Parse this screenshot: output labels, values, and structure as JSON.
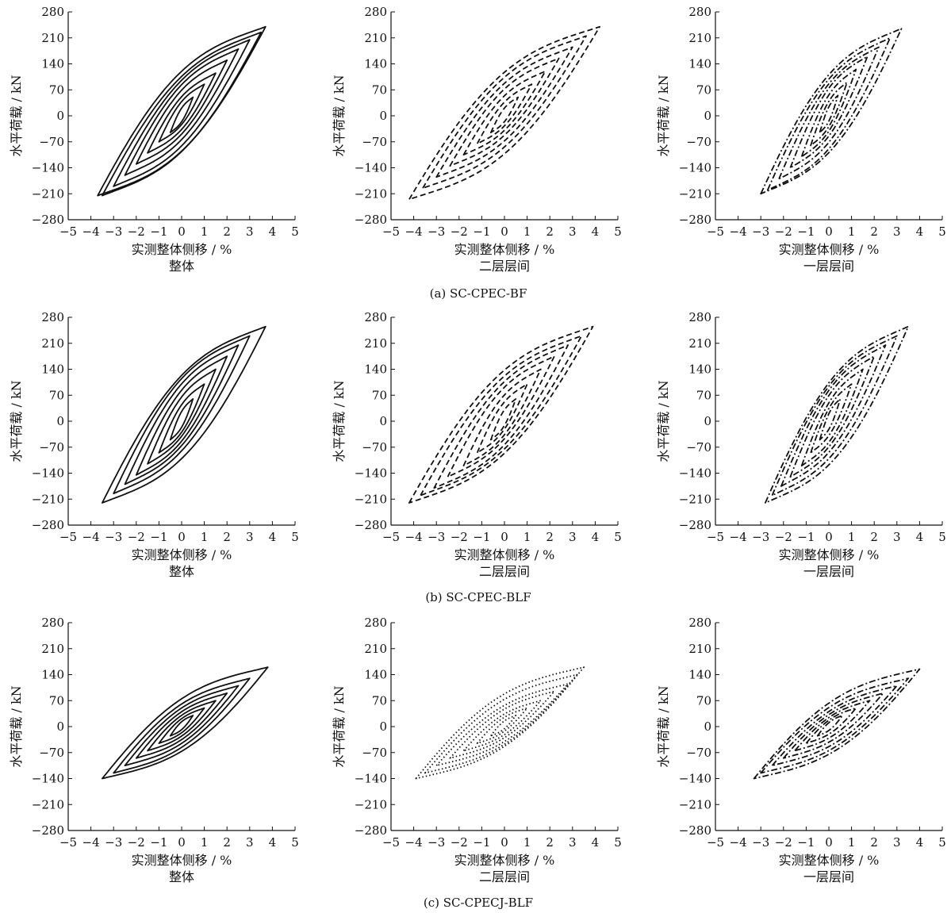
{
  "figure": {
    "row_captions": [
      "(a) SC-CPEC-BF",
      "(b) SC-CPEC-BLF",
      "(c) SC-CPECJ-BLF"
    ]
  },
  "chart_data": [
    {
      "type": "line",
      "row": 0,
      "col": 0,
      "xlabel": "实测整体侧移 / %",
      "ylabel": "水平荷载 / kN",
      "panel_label": "整体",
      "xlim": [
        -5,
        5
      ],
      "ylim": [
        -280,
        280
      ],
      "xticks": [
        "−5",
        "−4",
        "−3",
        "−2",
        "−1",
        "0",
        "1",
        "2",
        "3",
        "4",
        "5"
      ],
      "yticks": [
        "280",
        "210",
        "140",
        "70",
        "0",
        "−70",
        "−140",
        "−210",
        "−280"
      ],
      "line_style": "solid",
      "stroke": "#111111",
      "series": [
        {
          "x_min": -0.5,
          "y_min": -45,
          "x_max": 0.5,
          "y_max": 50
        },
        {
          "x_min": -1.0,
          "y_min": -70,
          "x_max": 1.0,
          "y_max": 85
        },
        {
          "x_min": -1.5,
          "y_min": -100,
          "x_max": 1.5,
          "y_max": 115
        },
        {
          "x_min": -2.0,
          "y_min": -130,
          "x_max": 2.0,
          "y_max": 150
        },
        {
          "x_min": -2.5,
          "y_min": -160,
          "x_max": 2.5,
          "y_max": 180
        },
        {
          "x_min": -3.0,
          "y_min": -190,
          "x_max": 3.0,
          "y_max": 205
        },
        {
          "x_min": -3.5,
          "y_min": -215,
          "x_max": 3.5,
          "y_max": 225
        },
        {
          "x_min": -3.7,
          "y_min": -215,
          "x_max": 3.7,
          "y_max": 240
        }
      ]
    },
    {
      "type": "line",
      "row": 0,
      "col": 1,
      "xlabel": "实测整体侧移 / %",
      "ylabel": "水平荷载 / kN",
      "panel_label": "二层层间",
      "xlim": [
        -5,
        5
      ],
      "ylim": [
        -280,
        280
      ],
      "xticks": [
        "−5",
        "−4",
        "−3",
        "−2",
        "−1",
        "0",
        "1",
        "2",
        "3",
        "4",
        "5"
      ],
      "yticks": [
        "280",
        "210",
        "140",
        "70",
        "0",
        "−70",
        "−140",
        "−210",
        "−280"
      ],
      "line_style": "dashed",
      "stroke": "#111111",
      "series": [
        {
          "x_min": -0.6,
          "y_min": -45,
          "x_max": 0.6,
          "y_max": 50
        },
        {
          "x_min": -1.2,
          "y_min": -75,
          "x_max": 1.2,
          "y_max": 85
        },
        {
          "x_min": -1.8,
          "y_min": -105,
          "x_max": 1.8,
          "y_max": 120
        },
        {
          "x_min": -2.4,
          "y_min": -135,
          "x_max": 2.4,
          "y_max": 155
        },
        {
          "x_min": -3.0,
          "y_min": -165,
          "x_max": 3.0,
          "y_max": 185
        },
        {
          "x_min": -3.6,
          "y_min": -195,
          "x_max": 3.6,
          "y_max": 215
        },
        {
          "x_min": -4.2,
          "y_min": -225,
          "x_max": 4.2,
          "y_max": 240
        }
      ]
    },
    {
      "type": "line",
      "row": 0,
      "col": 2,
      "xlabel": "实测整体侧移 / %",
      "ylabel": "水平荷载 / kN",
      "panel_label": "一层层间",
      "xlim": [
        -5,
        5
      ],
      "ylim": [
        -280,
        280
      ],
      "xticks": [
        "−5",
        "−4",
        "−3",
        "−2",
        "−1",
        "0",
        "1",
        "2",
        "3",
        "4",
        "5"
      ],
      "yticks": [
        "280",
        "210",
        "140",
        "70",
        "0",
        "−70",
        "−140",
        "−210",
        "−280"
      ],
      "line_style": "dashdot",
      "stroke": "#111111",
      "series": [
        {
          "x_min": -0.4,
          "y_min": -45,
          "x_max": 0.4,
          "y_max": 55
        },
        {
          "x_min": -0.8,
          "y_min": -80,
          "x_max": 0.8,
          "y_max": 90
        },
        {
          "x_min": -1.2,
          "y_min": -110,
          "x_max": 1.2,
          "y_max": 125
        },
        {
          "x_min": -1.7,
          "y_min": -140,
          "x_max": 1.7,
          "y_max": 160
        },
        {
          "x_min": -2.2,
          "y_min": -170,
          "x_max": 2.2,
          "y_max": 185
        },
        {
          "x_min": -2.7,
          "y_min": -200,
          "x_max": 2.7,
          "y_max": 210
        },
        {
          "x_min": -3.0,
          "y_min": -210,
          "x_max": 3.2,
          "y_max": 235
        }
      ]
    },
    {
      "type": "line",
      "row": 1,
      "col": 0,
      "xlabel": "实测整体侧移 / %",
      "ylabel": "水平荷载 / kN",
      "panel_label": "整体",
      "xlim": [
        -5,
        5
      ],
      "ylim": [
        -280,
        280
      ],
      "xticks": [
        "−5",
        "−4",
        "−3",
        "−2",
        "−1",
        "0",
        "1",
        "2",
        "3",
        "4",
        "5"
      ],
      "yticks": [
        "280",
        "210",
        "140",
        "70",
        "0",
        "−70",
        "−140",
        "−210",
        "−280"
      ],
      "line_style": "solid",
      "stroke": "#111111",
      "series": [
        {
          "x_min": -0.5,
          "y_min": -50,
          "x_max": 0.5,
          "y_max": 60
        },
        {
          "x_min": -1.0,
          "y_min": -85,
          "x_max": 1.0,
          "y_max": 100
        },
        {
          "x_min": -1.5,
          "y_min": -115,
          "x_max": 1.5,
          "y_max": 140
        },
        {
          "x_min": -2.0,
          "y_min": -145,
          "x_max": 2.0,
          "y_max": 175
        },
        {
          "x_min": -2.5,
          "y_min": -170,
          "x_max": 2.5,
          "y_max": 205
        },
        {
          "x_min": -3.0,
          "y_min": -195,
          "x_max": 3.0,
          "y_max": 230
        },
        {
          "x_min": -3.5,
          "y_min": -220,
          "x_max": 3.7,
          "y_max": 255
        }
      ]
    },
    {
      "type": "line",
      "row": 1,
      "col": 1,
      "xlabel": "实测整体侧移 / %",
      "ylabel": "水平荷载 / kN",
      "panel_label": "二层层间",
      "xlim": [
        -5,
        5
      ],
      "ylim": [
        -280,
        280
      ],
      "xticks": [
        "−5",
        "−4",
        "−3",
        "−2",
        "−1",
        "0",
        "1",
        "2",
        "3",
        "4",
        "5"
      ],
      "yticks": [
        "280",
        "210",
        "140",
        "70",
        "0",
        "−70",
        "−140",
        "−210",
        "−280"
      ],
      "line_style": "dashed",
      "stroke": "#111111",
      "series": [
        {
          "x_min": -0.6,
          "y_min": -50,
          "x_max": 0.5,
          "y_max": 60
        },
        {
          "x_min": -1.2,
          "y_min": -85,
          "x_max": 1.0,
          "y_max": 100
        },
        {
          "x_min": -1.8,
          "y_min": -120,
          "x_max": 1.6,
          "y_max": 140
        },
        {
          "x_min": -2.5,
          "y_min": -150,
          "x_max": 2.2,
          "y_max": 175
        },
        {
          "x_min": -3.1,
          "y_min": -180,
          "x_max": 2.8,
          "y_max": 205
        },
        {
          "x_min": -3.7,
          "y_min": -200,
          "x_max": 3.4,
          "y_max": 230
        },
        {
          "x_min": -4.2,
          "y_min": -220,
          "x_max": 3.9,
          "y_max": 255
        }
      ]
    },
    {
      "type": "line",
      "row": 1,
      "col": 2,
      "xlabel": "实测整体侧移 / %",
      "ylabel": "水平荷载 / kN",
      "panel_label": "一层层间",
      "xlim": [
        -5,
        5
      ],
      "ylim": [
        -280,
        280
      ],
      "xticks": [
        "−5",
        "−4",
        "−3",
        "−2",
        "−1",
        "0",
        "1",
        "2",
        "3",
        "4",
        "5"
      ],
      "yticks": [
        "280",
        "210",
        "140",
        "70",
        "0",
        "−70",
        "−140",
        "−210",
        "−280"
      ],
      "line_style": "dashdot",
      "stroke": "#111111",
      "series": [
        {
          "x_min": -0.4,
          "y_min": -50,
          "x_max": 0.5,
          "y_max": 60
        },
        {
          "x_min": -0.8,
          "y_min": -85,
          "x_max": 1.0,
          "y_max": 100
        },
        {
          "x_min": -1.2,
          "y_min": -120,
          "x_max": 1.5,
          "y_max": 140
        },
        {
          "x_min": -1.7,
          "y_min": -150,
          "x_max": 2.0,
          "y_max": 175
        },
        {
          "x_min": -2.1,
          "y_min": -175,
          "x_max": 2.5,
          "y_max": 205
        },
        {
          "x_min": -2.5,
          "y_min": -200,
          "x_max": 3.0,
          "y_max": 230
        },
        {
          "x_min": -2.8,
          "y_min": -220,
          "x_max": 3.5,
          "y_max": 255
        }
      ]
    },
    {
      "type": "line",
      "row": 2,
      "col": 0,
      "xlabel": "实测整体侧移 / %",
      "ylabel": "水平荷载 / kN",
      "panel_label": "整体",
      "xlim": [
        -5,
        5
      ],
      "ylim": [
        -280,
        280
      ],
      "xticks": [
        "−5",
        "−4",
        "−3",
        "−2",
        "−1",
        "0",
        "1",
        "2",
        "3",
        "4",
        "5"
      ],
      "yticks": [
        "280",
        "210",
        "140",
        "70",
        "0",
        "−70",
        "−140",
        "−210",
        "−280"
      ],
      "line_style": "solid",
      "stroke": "#111111",
      "series": [
        {
          "x_min": -0.5,
          "y_min": -25,
          "x_max": 0.5,
          "y_max": 30
        },
        {
          "x_min": -1.0,
          "y_min": -45,
          "x_max": 1.0,
          "y_max": 50
        },
        {
          "x_min": -1.5,
          "y_min": -65,
          "x_max": 1.5,
          "y_max": 70
        },
        {
          "x_min": -2.0,
          "y_min": -85,
          "x_max": 2.0,
          "y_max": 90
        },
        {
          "x_min": -2.5,
          "y_min": -105,
          "x_max": 2.5,
          "y_max": 110
        },
        {
          "x_min": -3.0,
          "y_min": -125,
          "x_max": 3.0,
          "y_max": 130
        },
        {
          "x_min": -3.5,
          "y_min": -140,
          "x_max": 3.8,
          "y_max": 160
        }
      ]
    },
    {
      "type": "line",
      "row": 2,
      "col": 1,
      "xlabel": "实测整体侧移 / %",
      "ylabel": "水平荷载 / kN",
      "panel_label": "二层层间",
      "xlim": [
        -5,
        5
      ],
      "ylim": [
        -280,
        280
      ],
      "xticks": [
        "−5",
        "−4",
        "−3",
        "−2",
        "−1",
        "0",
        "1",
        "2",
        "3",
        "4",
        "5"
      ],
      "yticks": [
        "280",
        "210",
        "140",
        "70",
        "0",
        "−70",
        "−140",
        "−210",
        "−280"
      ],
      "line_style": "dotted",
      "stroke": "#111111",
      "series": [
        {
          "x_min": -0.6,
          "y_min": -25,
          "x_max": 0.5,
          "y_max": 30
        },
        {
          "x_min": -1.2,
          "y_min": -45,
          "x_max": 1.0,
          "y_max": 50
        },
        {
          "x_min": -1.8,
          "y_min": -65,
          "x_max": 1.6,
          "y_max": 70
        },
        {
          "x_min": -2.4,
          "y_min": -85,
          "x_max": 2.2,
          "y_max": 95
        },
        {
          "x_min": -3.0,
          "y_min": -105,
          "x_max": 2.8,
          "y_max": 115
        },
        {
          "x_min": -3.5,
          "y_min": -125,
          "x_max": 3.2,
          "y_max": 140
        },
        {
          "x_min": -3.9,
          "y_min": -140,
          "x_max": 3.5,
          "y_max": 160
        }
      ]
    },
    {
      "type": "line",
      "row": 2,
      "col": 2,
      "xlabel": "实测整体侧移 / %",
      "ylabel": "水平荷载 / kN",
      "panel_label": "一层层间",
      "xlim": [
        -5,
        5
      ],
      "ylim": [
        -280,
        280
      ],
      "xticks": [
        "−5",
        "−4",
        "−3",
        "−2",
        "−1",
        "0",
        "1",
        "2",
        "3",
        "4",
        "5"
      ],
      "yticks": [
        "280",
        "210",
        "140",
        "70",
        "0",
        "−70",
        "−140",
        "−210",
        "−280"
      ],
      "line_style": "dashdot",
      "stroke": "#111111",
      "series": [
        {
          "x_min": -0.5,
          "y_min": -25,
          "x_max": 0.6,
          "y_max": 30
        },
        {
          "x_min": -1.0,
          "y_min": -45,
          "x_max": 1.2,
          "y_max": 50
        },
        {
          "x_min": -1.5,
          "y_min": -65,
          "x_max": 1.8,
          "y_max": 70
        },
        {
          "x_min": -2.0,
          "y_min": -85,
          "x_max": 2.4,
          "y_max": 90
        },
        {
          "x_min": -2.5,
          "y_min": -105,
          "x_max": 3.0,
          "y_max": 110
        },
        {
          "x_min": -3.0,
          "y_min": -125,
          "x_max": 3.5,
          "y_max": 130
        },
        {
          "x_min": -3.3,
          "y_min": -140,
          "x_max": 4.0,
          "y_max": 155
        }
      ]
    }
  ]
}
